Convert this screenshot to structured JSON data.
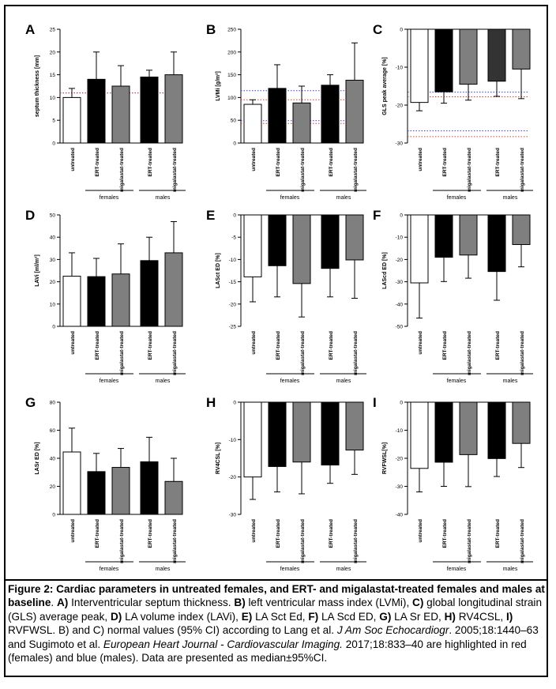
{
  "chart_data": [
    {
      "letter": "A",
      "type": "bar",
      "ylabel": "septum thickness [mm]",
      "ylim": [
        0,
        25
      ],
      "yticks": [
        0,
        5,
        10,
        15,
        20,
        25
      ],
      "categories": [
        "untreated",
        "ERT-treated",
        "migalastat-treated",
        "ERT-treated",
        "migalastat-treated"
      ],
      "values": [
        10,
        14,
        12.5,
        14.5,
        15
      ],
      "error_upper": [
        12,
        20,
        17,
        16,
        20
      ],
      "group_labels": [
        "females",
        "males"
      ],
      "reference_lines": [
        {
          "value": 11,
          "color": "#3b3bd9"
        },
        {
          "value": 11,
          "color": "#d93b3b"
        }
      ]
    },
    {
      "letter": "B",
      "type": "bar",
      "ylabel": "LVMi [g/m²]",
      "ylim": [
        0,
        250
      ],
      "yticks": [
        0,
        50,
        100,
        150,
        200,
        250
      ],
      "categories": [
        "untreated",
        "ERT-treated",
        "migalastat-treated",
        "ERT-treated",
        "migalastat-treated"
      ],
      "values": [
        85,
        120,
        88,
        127,
        138
      ],
      "error_upper": [
        95,
        172,
        125,
        150,
        220
      ],
      "group_labels": [
        "females",
        "males"
      ],
      "reference_lines": [
        {
          "value": 115,
          "color": "#3b3bd9"
        },
        {
          "value": 95,
          "color": "#d93b3b"
        },
        {
          "value": 49,
          "color": "#3b3bd9"
        },
        {
          "value": 43,
          "color": "#d93b3b"
        }
      ]
    },
    {
      "letter": "C",
      "type": "bar",
      "ylabel": "GLS peak average [%]",
      "ylim": [
        -30,
        0
      ],
      "yticks": [
        0,
        -10,
        -20,
        -30
      ],
      "categories": [
        "untreated",
        "ERT-treated",
        "migalastat-treated",
        "ERT-treated",
        "migalastat-treated"
      ],
      "values": [
        -19.3,
        -16.5,
        -14.5,
        -13.7,
        -10.5
      ],
      "error_lower": [
        -21.5,
        -19.5,
        -18.7,
        -17.7,
        -18.3
      ],
      "group_labels": [
        "females",
        "males"
      ],
      "reference_lines": [
        {
          "value": -16.6,
          "color": "#3b3bd9"
        },
        {
          "value": -17.8,
          "color": "#d93b3b"
        },
        {
          "value": -26.8,
          "color": "#3b3bd9"
        },
        {
          "value": -28.3,
          "color": "#d93b3b"
        }
      ]
    },
    {
      "letter": "D",
      "type": "bar",
      "ylabel": "LAVi [ml/m²]",
      "ylim": [
        0,
        50
      ],
      "yticks": [
        0,
        10,
        20,
        30,
        40,
        50
      ],
      "categories": [
        "untreated",
        "ERT-treated",
        "migalastat-treated",
        "ERT-treated",
        "migalastat-treated"
      ],
      "values": [
        22.5,
        22.3,
        23.5,
        29.5,
        33
      ],
      "error_upper": [
        33,
        30.5,
        37,
        40,
        47
      ],
      "group_labels": [
        "females",
        "males"
      ],
      "reference_lines": []
    },
    {
      "letter": "E",
      "type": "bar",
      "ylabel": "LASct ED [%]",
      "ylim": [
        -25,
        0
      ],
      "yticks": [
        0,
        -5,
        -10,
        -15,
        -20,
        -25
      ],
      "categories": [
        "untreated",
        "ERT-treated",
        "migalastat-treated",
        "ERT-treated",
        "migalastat-treated"
      ],
      "values": [
        -13.9,
        -11.4,
        -15.4,
        -12,
        -10.1
      ],
      "error_lower": [
        -19.5,
        -18.4,
        -22.9,
        -18.4,
        -18.7
      ],
      "group_labels": [
        "females",
        "males"
      ],
      "reference_lines": []
    },
    {
      "letter": "F",
      "type": "bar",
      "ylabel": "LAScd ED [%]",
      "ylim": [
        -50,
        0
      ],
      "yticks": [
        0,
        -10,
        -20,
        -30,
        -40,
        -50
      ],
      "categories": [
        "untreated",
        "ERT-treated",
        "migalastat-treated",
        "ERT-treated",
        "migalastat-treated"
      ],
      "values": [
        -30.5,
        -19,
        -18,
        -25.4,
        -13.3
      ],
      "error_lower": [
        -46.3,
        -29.9,
        -28.4,
        -38.3,
        -23.3
      ],
      "group_labels": [
        "females",
        "males"
      ],
      "reference_lines": []
    },
    {
      "letter": "G",
      "type": "bar",
      "ylabel": "LASr ED [%]",
      "ylim": [
        0,
        80
      ],
      "yticks": [
        0,
        20,
        40,
        60,
        80
      ],
      "categories": [
        "untreated",
        "ERT-treated",
        "migalastat-treated",
        "ERT-treated",
        "migalastat-treated"
      ],
      "values": [
        44.5,
        30.5,
        33.5,
        37.5,
        23.5
      ],
      "error_upper": [
        61.5,
        43.5,
        47,
        55,
        40
      ],
      "group_labels": [
        "females",
        "males"
      ],
      "reference_lines": []
    },
    {
      "letter": "H",
      "type": "bar",
      "ylabel": "RV4CSL [%]",
      "ylim": [
        -30,
        0
      ],
      "yticks": [
        0,
        -10,
        -20,
        -30
      ],
      "categories": [
        "untreated",
        "ERT-treated",
        "migalastat-treated",
        "ERT-treated",
        "migalastat-treated"
      ],
      "values": [
        -20,
        -17.2,
        -16,
        -16.8,
        -12.8
      ],
      "error_lower": [
        -26,
        -24,
        -24.5,
        -21.7,
        -19.3
      ],
      "group_labels": [
        "females",
        "males"
      ],
      "reference_lines": []
    },
    {
      "letter": "I",
      "type": "bar",
      "ylabel": "RVFWSL[%]",
      "ylim": [
        -40,
        0
      ],
      "yticks": [
        0,
        -10,
        -20,
        -30,
        -40
      ],
      "categories": [
        "untreated",
        "ERT-treated",
        "migalastat-treated",
        "ERT-treated",
        "migalastat-treated"
      ],
      "values": [
        -23.6,
        -21.4,
        -18.7,
        -20.1,
        -14.7
      ],
      "error_lower": [
        -32,
        -30,
        -30.1,
        -26.5,
        -23.3
      ],
      "group_labels": [
        "females",
        "males"
      ],
      "reference_lines": []
    }
  ],
  "colors": {
    "bar_fill": [
      "#ffffff",
      "#000000",
      "#7f7f7f",
      "#000000",
      "#7f7f7f"
    ],
    "bar_fill_C": [
      "#ffffff",
      "#000000",
      "#7f7f7f",
      "#333333",
      "#7f7f7f"
    ],
    "females_ref": "#d93b3b",
    "males_ref": "#3b3bd9"
  },
  "caption": {
    "title": "Figure 2: Cardiac parameters in untreated females, and ERT- and migalastat-treated females and males at baseline",
    "p1": ". ",
    "A": "A)",
    "t_A": " Interventricular septum thickness. ",
    "B": "B)",
    "t_B": " left ventricular mass index (LVMi), ",
    "C": "C)",
    "t_C": " global longitudinal strain (GLS) average peak, ",
    "D": "D)",
    "t_D": " LA volume index (LAVi), ",
    "E": "E)",
    "t_E": " LA Sct Ed, ",
    "F": "F)",
    "t_F": " LA Scd ED, ",
    "G": "G)",
    "t_G": " LA Sr ED, ",
    "H": "H)",
    "t_H": " RV4CSL, ",
    "I": "I)",
    "t_I": " RVFWSL.",
    "t_norm1": " B) and C) normal values (95% CI) according to Lang et al. ",
    "j1": "J Am Soc Echocardiogr",
    "t_norm2": ". 2005;18:1440–63 and Sugimoto et al. ",
    "j2": "European Heart Journal - Cardiovascular Imaging.",
    "t_norm3": " 2017;18:833–40 are highlighted in red (females) and blue (males). Data are presented as median±95%CI."
  }
}
